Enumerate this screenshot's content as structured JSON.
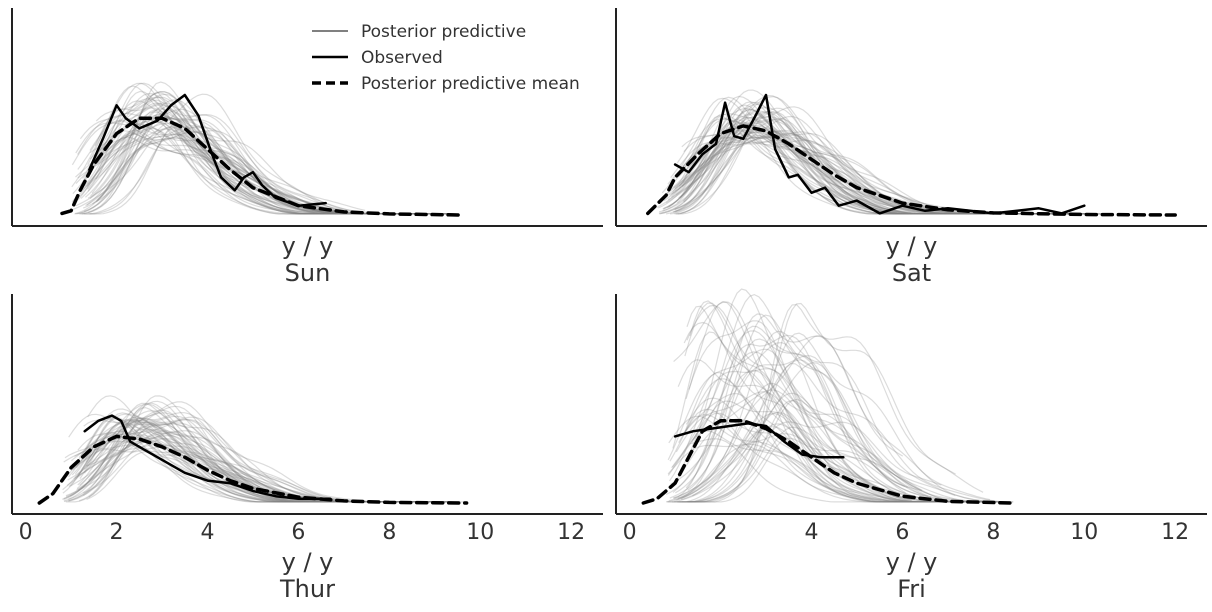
{
  "colors": {
    "posterior_predictive": "#808080",
    "observed": "#000000",
    "mean": "#000000",
    "background": "#ffffff",
    "axis": "#222222",
    "text": "#333333"
  },
  "legend": {
    "placement": "top-center",
    "items": [
      {
        "label": "Posterior predictive",
        "style": "solid-grey"
      },
      {
        "label": "Observed",
        "style": "solid-black"
      },
      {
        "label": "Posterior predictive mean",
        "style": "dashed-black"
      }
    ]
  },
  "chart_data": [
    {
      "type": "line",
      "title": "Sun",
      "xlabel": "y / y",
      "xlim": [
        -0.3,
        12.7
      ],
      "ylim": [
        0,
        0.4
      ],
      "xticks": [
        0,
        2,
        4,
        6,
        8,
        10,
        12
      ],
      "show_xticks": false,
      "series": [
        {
          "name": "Observed",
          "x": [
            1.4,
            1.7,
            2.0,
            2.2,
            2.5,
            2.9,
            3.2,
            3.5,
            3.8,
            4.1,
            4.3,
            4.6,
            4.8,
            5.0,
            5.2,
            5.5,
            6.0,
            6.6
          ],
          "y": [
            0.09,
            0.15,
            0.215,
            0.19,
            0.17,
            0.185,
            0.215,
            0.235,
            0.195,
            0.12,
            0.075,
            0.05,
            0.075,
            0.085,
            0.06,
            0.035,
            0.02,
            0.025
          ]
        },
        {
          "name": "Posterior predictive mean",
          "x": [
            0.8,
            1.0,
            1.2,
            1.5,
            2.0,
            2.5,
            3.0,
            3.5,
            4.0,
            4.5,
            5.0,
            6.0,
            7.0,
            8.0,
            9.6
          ],
          "y": [
            0.005,
            0.01,
            0.05,
            0.1,
            0.16,
            0.19,
            0.19,
            0.17,
            0.13,
            0.09,
            0.055,
            0.02,
            0.008,
            0.004,
            0.002
          ]
        }
      ],
      "posterior_predictive": {
        "n_draws": 60,
        "x_range": [
          1.0,
          9.5
        ],
        "peak_x_range": [
          2.2,
          3.5
        ],
        "peak_y_range": [
          0.15,
          0.24
        ]
      }
    },
    {
      "type": "line",
      "title": "Sat",
      "xlabel": "y / y",
      "xlim": [
        -0.3,
        12.7
      ],
      "ylim": [
        0,
        0.4
      ],
      "xticks": [
        0,
        2,
        4,
        6,
        8,
        10,
        12
      ],
      "show_xticks": false,
      "series": [
        {
          "name": "Observed",
          "x": [
            1.0,
            1.3,
            1.6,
            1.9,
            2.1,
            2.3,
            2.5,
            2.8,
            3.0,
            3.2,
            3.5,
            3.7,
            4.0,
            4.3,
            4.6,
            5.0,
            5.5,
            6.0,
            6.5,
            7.0,
            8.0,
            9.0,
            9.5,
            10.0
          ],
          "y": [
            0.1,
            0.085,
            0.12,
            0.14,
            0.22,
            0.155,
            0.15,
            0.2,
            0.235,
            0.13,
            0.075,
            0.08,
            0.045,
            0.055,
            0.02,
            0.03,
            0.005,
            0.02,
            0.01,
            0.015,
            0.005,
            0.015,
            0.005,
            0.02
          ]
        },
        {
          "name": "Posterior predictive mean",
          "x": [
            0.4,
            0.8,
            1.0,
            1.5,
            2.0,
            2.5,
            3.0,
            3.5,
            4.0,
            4.5,
            5.0,
            6.0,
            7.0,
            8.0,
            10.0,
            12.0
          ],
          "y": [
            0.005,
            0.04,
            0.075,
            0.12,
            0.16,
            0.175,
            0.165,
            0.14,
            0.11,
            0.08,
            0.055,
            0.025,
            0.012,
            0.006,
            0.003,
            0.002
          ]
        }
      ],
      "posterior_predictive": {
        "n_draws": 60,
        "x_range": [
          0.6,
          10.5
        ],
        "peak_x_range": [
          2.0,
          3.0
        ],
        "peak_y_range": [
          0.15,
          0.22
        ]
      }
    },
    {
      "type": "line",
      "title": "Thur",
      "xlabel": "y / y",
      "xlim": [
        -0.3,
        12.7
      ],
      "ylim": [
        0,
        0.4
      ],
      "xticks": [
        0,
        2,
        4,
        6,
        8,
        10,
        12
      ],
      "show_xticks": true,
      "series": [
        {
          "name": "Observed",
          "x": [
            1.3,
            1.6,
            1.9,
            2.1,
            2.3,
            2.6,
            3.0,
            3.5,
            4.0,
            4.5,
            5.0,
            5.5,
            6.0,
            6.5,
            6.7
          ],
          "y": [
            0.14,
            0.16,
            0.17,
            0.16,
            0.12,
            0.105,
            0.085,
            0.06,
            0.045,
            0.04,
            0.025,
            0.015,
            0.01,
            0.01,
            0.01
          ]
        },
        {
          "name": "Posterior predictive mean",
          "x": [
            0.3,
            0.6,
            1.0,
            1.5,
            2.0,
            2.5,
            3.0,
            3.5,
            4.0,
            4.5,
            5.0,
            6.0,
            7.0,
            8.0,
            9.7
          ],
          "y": [
            0.002,
            0.02,
            0.07,
            0.11,
            0.13,
            0.125,
            0.11,
            0.09,
            0.065,
            0.045,
            0.03,
            0.013,
            0.006,
            0.003,
            0.002
          ]
        }
      ],
      "posterior_predictive": {
        "n_draws": 60,
        "x_range": [
          0.8,
          9.8
        ],
        "peak_x_range": [
          1.8,
          2.9
        ],
        "peak_y_range": [
          0.11,
          0.19
        ]
      }
    },
    {
      "type": "line",
      "title": "Fri",
      "xlabel": "y / y",
      "xlim": [
        -0.3,
        12.7
      ],
      "ylim": [
        0,
        0.4
      ],
      "xticks": [
        0,
        2,
        4,
        6,
        8,
        10,
        12
      ],
      "show_xticks": true,
      "series": [
        {
          "name": "Observed",
          "x": [
            1.0,
            1.4,
            1.8,
            2.2,
            2.6,
            3.0,
            3.4,
            3.8,
            4.2,
            4.7
          ],
          "y": [
            0.13,
            0.14,
            0.145,
            0.15,
            0.155,
            0.15,
            0.12,
            0.095,
            0.09,
            0.09
          ]
        },
        {
          "name": "Posterior predictive mean",
          "x": [
            0.3,
            0.6,
            1.0,
            1.3,
            1.6,
            2.0,
            2.5,
            3.0,
            3.5,
            4.0,
            4.5,
            5.0,
            6.0,
            7.0,
            8.4
          ],
          "y": [
            0.002,
            0.01,
            0.04,
            0.09,
            0.14,
            0.16,
            0.16,
            0.145,
            0.12,
            0.09,
            0.06,
            0.04,
            0.015,
            0.005,
            0.002
          ]
        }
      ],
      "posterior_predictive": {
        "n_draws": 60,
        "x_range": [
          0.8,
          8.5
        ],
        "peak_x_range": [
          1.4,
          4.0
        ],
        "peak_y_range": [
          0.12,
          0.38
        ]
      }
    }
  ]
}
